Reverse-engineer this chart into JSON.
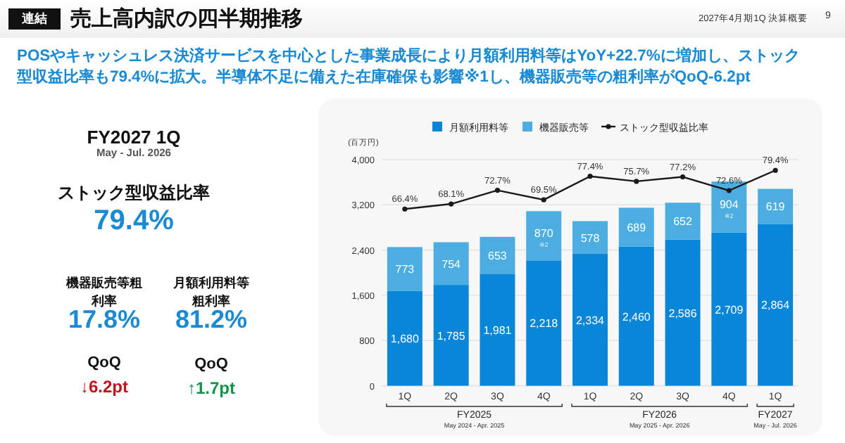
{
  "chart_data": {
    "type": "bar",
    "stacked": true,
    "title": "売上高内訳の四半期推移",
    "subtitle": "POSやキャッシュレス決済サービスを中心とした事業成長により月額利用料等はYoY+22.7%に増加し、ストック型収益比率も79.4%に拡大。半導体不足に備えた在庫確保も影響※1し、機器販売等の粗利率がQoQ-6.2pt",
    "ylabel": "(百万円)",
    "categories": [
      "1Q",
      "2Q",
      "3Q",
      "4Q",
      "1Q",
      "2Q",
      "3Q",
      "4Q",
      "1Q"
    ],
    "series": [
      {
        "name": "月額利用料等",
        "color": "#0a86d8",
        "values": [
          1680,
          1785,
          1981,
          2218,
          2334,
          2460,
          2586,
          2709,
          2864
        ],
        "value_labels": [
          "1,680",
          "1,785",
          "1,981",
          "2,218",
          "2,334",
          "2,460",
          "2,586",
          "2,709",
          "2,864"
        ]
      },
      {
        "name": "機器販売等",
        "color": "#4caee0",
        "values": [
          773,
          754,
          653,
          870,
          578,
          689,
          652,
          904,
          619
        ],
        "value_labels": [
          "773",
          "754",
          "653",
          "870 ※2",
          "578",
          "689",
          "652",
          "904 ※2",
          "619"
        ]
      },
      {
        "name": "ストック型収益比率",
        "type": "line",
        "axis": "y2",
        "color": "#1a1a1a",
        "marker": "circle",
        "values": [
          66.4,
          68.1,
          72.7,
          69.5,
          77.4,
          75.7,
          77.2,
          72.6,
          79.4
        ],
        "value_labels": [
          "66.4%",
          "68.1%",
          "72.7%",
          "69.5%",
          "77.4%",
          "75.7%",
          "77.2%",
          "72.6%",
          "79.4%"
        ]
      }
    ],
    "ylim": [
      0,
      4000
    ],
    "yticks": [
      0,
      {
        "value": 800,
        "label": "800"
      },
      {
        "value": 1600,
        "label": "1,600"
      },
      {
        "value": 2400,
        "label": "2,400"
      },
      {
        "value": 3200,
        "label": "3,200"
      },
      {
        "value": 4000,
        "label": "4,000"
      }
    ],
    "y2lim": [
      7,
      83
    ],
    "grid": "y",
    "legend": "top",
    "annotations": [
      "連結",
      "2027年4月期1Q 決算概要",
      "9",
      "FY2027 1Q",
      "May - Jul. 2026",
      "ストック型収益比率",
      "79.4%",
      "機器販売等粗利率",
      "17.8%",
      "月額利用料等粗利率",
      "81.2%",
      "QoQ",
      "↓6.2pt",
      "QoQ",
      "↑1.7pt",
      "FY2025",
      "May 2024 - Apr. 2025",
      "FY2026",
      "May 2025 - Apr. 2026",
      "FY2027",
      "May - Jul. 2026"
    ]
  }
}
